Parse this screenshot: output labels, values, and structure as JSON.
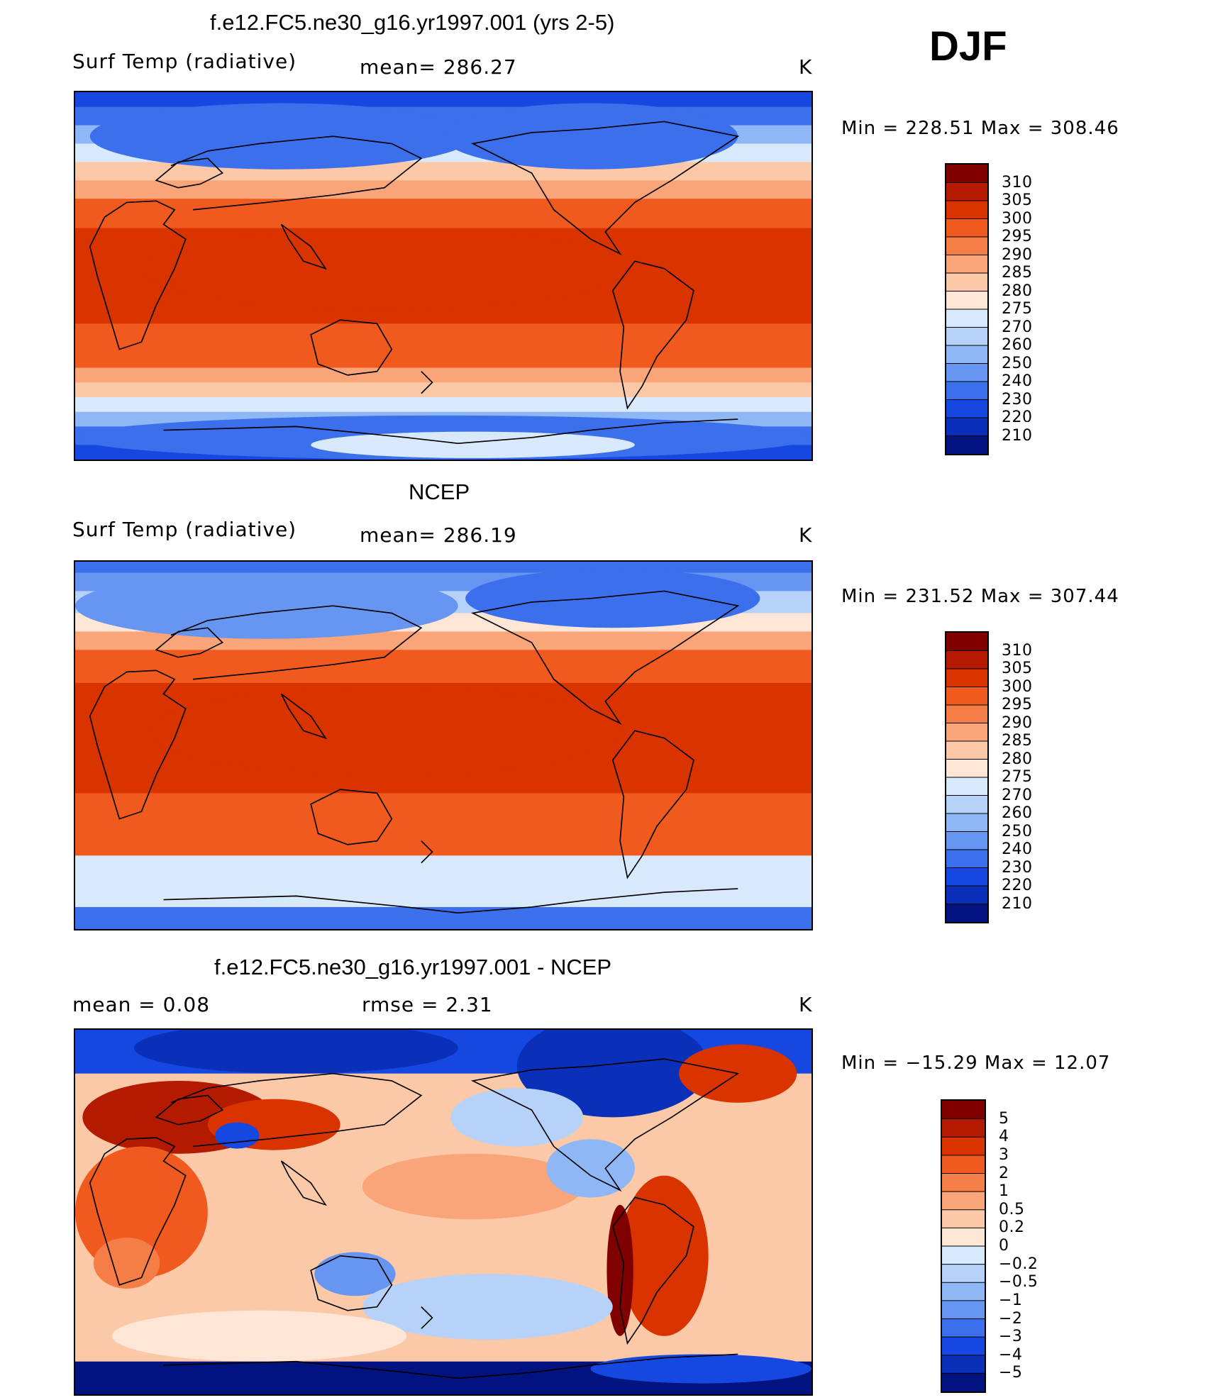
{
  "season": "DJF",
  "panels": [
    {
      "title": "f.e12.FC5.ne30_g16.yr1997.001 (yrs 2-5)",
      "left_label": "Surf Temp (radiative)",
      "center_label": "mean= 286.27",
      "units": "K",
      "minmax": "Min = 228.51 Max = 308.46"
    },
    {
      "title": "NCEP",
      "left_label": "Surf Temp (radiative)",
      "center_label": "mean= 286.19",
      "units": "K",
      "minmax": "Min = 231.52 Max = 307.44"
    },
    {
      "title": "f.e12.FC5.ne30_g16.yr1997.001 - NCEP",
      "left_label": "mean =     0.08",
      "center_label": "rmse =     2.31",
      "units": "K",
      "minmax": "Min = −15.29 Max =   12.07"
    }
  ],
  "colorbars": {
    "absolute": {
      "labels": [
        "310",
        "305",
        "300",
        "295",
        "290",
        "285",
        "280",
        "275",
        "270",
        "260",
        "250",
        "240",
        "230",
        "220",
        "210"
      ],
      "colors": [
        "#800000",
        "#b31a00",
        "#d93300",
        "#f05a1e",
        "#f57e47",
        "#f9a479",
        "#fbc8a8",
        "#fde6d6",
        "#d8e9fb",
        "#b6d2f8",
        "#8fb6f5",
        "#6696f1",
        "#3b6fec",
        "#1548e0",
        "#0a2fb8",
        "#00137f"
      ]
    },
    "difference": {
      "labels": [
        "5",
        "4",
        "3",
        "2",
        "1",
        "0.5",
        "0.2",
        "0",
        "−0.2",
        "−0.5",
        "−1",
        "−2",
        "−3",
        "−4",
        "−5"
      ],
      "colors": [
        "#800000",
        "#b31a00",
        "#d93300",
        "#f05a1e",
        "#f57e47",
        "#f9a479",
        "#fbc8a8",
        "#fde6d6",
        "#d8e9fb",
        "#b6d2f8",
        "#8fb6f5",
        "#6696f1",
        "#3b6fec",
        "#1548e0",
        "#0a2fb8",
        "#00137f"
      ]
    }
  }
}
